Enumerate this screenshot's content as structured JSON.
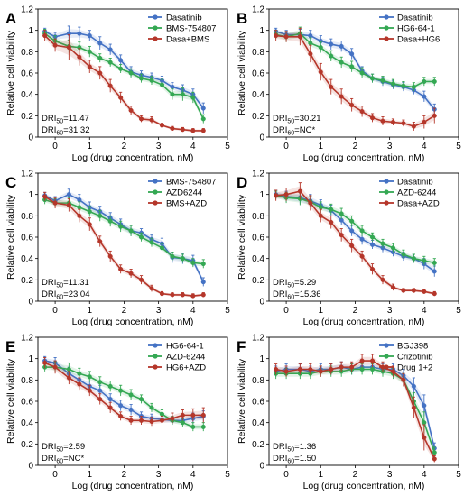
{
  "chart_data": [
    {
      "panel": "A",
      "type": "line",
      "xlabel": "Log (drug concentration, nM)",
      "ylabel": "Relative cell viability",
      "xlim": [
        -0.5,
        5
      ],
      "ylim": [
        0,
        1.2
      ],
      "xticks": [
        "0",
        "1",
        "2",
        "3",
        "4",
        "5"
      ],
      "yticks": [
        "0",
        "0.2",
        "0.4",
        "0.6",
        "0.8",
        "1",
        "1.2"
      ],
      "x": [
        -0.3,
        0.0,
        0.4,
        0.7,
        1.0,
        1.3,
        1.6,
        1.9,
        2.2,
        2.5,
        2.8,
        3.1,
        3.4,
        3.7,
        4.0,
        4.3
      ],
      "series": [
        {
          "name": "Dasatinib",
          "color": "#4472c4",
          "values": [
            0.99,
            0.94,
            0.97,
            0.97,
            0.95,
            0.88,
            0.82,
            0.72,
            0.61,
            0.58,
            0.56,
            0.53,
            0.47,
            0.44,
            0.4,
            0.27
          ],
          "errors": [
            0.03,
            0.04,
            0.07,
            0.06,
            0.05,
            0.06,
            0.05,
            0.05,
            0.05,
            0.04,
            0.04,
            0.04,
            0.04,
            0.05,
            0.05,
            0.05
          ]
        },
        {
          "name": "BMS-754807",
          "color": "#34a853",
          "values": [
            0.97,
            0.9,
            0.85,
            0.84,
            0.8,
            0.74,
            0.7,
            0.64,
            0.6,
            0.55,
            0.53,
            0.49,
            0.4,
            0.4,
            0.37,
            0.17
          ],
          "errors": [
            0.04,
            0.05,
            0.06,
            0.05,
            0.05,
            0.04,
            0.04,
            0.04,
            0.04,
            0.04,
            0.04,
            0.05,
            0.05,
            0.06,
            0.05,
            0.04
          ]
        },
        {
          "name": "Dasa+BMS",
          "color": "#b5362a",
          "values": [
            0.95,
            0.86,
            0.84,
            0.75,
            0.66,
            0.6,
            0.48,
            0.37,
            0.25,
            0.17,
            0.16,
            0.11,
            0.08,
            0.07,
            0.06,
            0.06
          ],
          "errors": [
            0.05,
            0.06,
            0.12,
            0.08,
            0.06,
            0.06,
            0.06,
            0.05,
            0.04,
            0.03,
            0.03,
            0.02,
            0.02,
            0.02,
            0.02,
            0.02
          ]
        }
      ],
      "dri50": "11.47",
      "dri60": "31.32"
    },
    {
      "panel": "B",
      "type": "line",
      "xlabel": "Log (drug concentration, nM)",
      "ylabel": "Relative cell viability",
      "xlim": [
        -0.5,
        5
      ],
      "ylim": [
        0,
        1.2
      ],
      "xticks": [
        "0",
        "1",
        "2",
        "3",
        "4",
        "5"
      ],
      "yticks": [
        "0",
        "0.2",
        "0.4",
        "0.6",
        "0.8",
        "1",
        "1.2"
      ],
      "x": [
        -0.3,
        0.0,
        0.4,
        0.7,
        1.0,
        1.3,
        1.6,
        1.9,
        2.2,
        2.5,
        2.8,
        3.1,
        3.4,
        3.7,
        4.0,
        4.3
      ],
      "series": [
        {
          "name": "Dasatinib",
          "color": "#4472c4",
          "values": [
            0.99,
            0.96,
            0.96,
            0.95,
            0.9,
            0.87,
            0.85,
            0.78,
            0.62,
            0.55,
            0.52,
            0.49,
            0.47,
            0.44,
            0.38,
            0.26
          ],
          "errors": [
            0.03,
            0.04,
            0.05,
            0.05,
            0.05,
            0.05,
            0.05,
            0.05,
            0.04,
            0.04,
            0.04,
            0.04,
            0.04,
            0.04,
            0.05,
            0.05
          ]
        },
        {
          "name": "HG6-64-1",
          "color": "#34a853",
          "values": [
            0.96,
            0.94,
            0.97,
            0.88,
            0.84,
            0.76,
            0.7,
            0.66,
            0.6,
            0.55,
            0.53,
            0.5,
            0.48,
            0.47,
            0.52,
            0.52
          ],
          "errors": [
            0.04,
            0.05,
            0.06,
            0.05,
            0.05,
            0.05,
            0.05,
            0.05,
            0.05,
            0.04,
            0.04,
            0.04,
            0.04,
            0.04,
            0.04,
            0.04
          ]
        },
        {
          "name": "Dasa+HG6",
          "color": "#b5362a",
          "values": [
            0.95,
            0.94,
            0.94,
            0.78,
            0.61,
            0.47,
            0.38,
            0.3,
            0.24,
            0.18,
            0.15,
            0.14,
            0.13,
            0.1,
            0.14,
            0.2
          ],
          "errors": [
            0.05,
            0.05,
            0.08,
            0.08,
            0.08,
            0.07,
            0.07,
            0.06,
            0.05,
            0.04,
            0.04,
            0.03,
            0.03,
            0.04,
            0.06,
            0.07
          ]
        }
      ],
      "dri50": "30.21",
      "dri60": "NC*"
    },
    {
      "panel": "C",
      "type": "line",
      "xlabel": "Log (drug concentration, nM)",
      "ylabel": "Relative cell viability",
      "xlim": [
        -0.5,
        5
      ],
      "ylim": [
        0,
        1.2
      ],
      "xticks": [
        "0",
        "1",
        "2",
        "3",
        "4",
        "5"
      ],
      "yticks": [
        "0",
        "0.2",
        "0.4",
        "0.6",
        "0.8",
        "1",
        "1.2"
      ],
      "x": [
        -0.3,
        0.0,
        0.4,
        0.7,
        1.0,
        1.3,
        1.6,
        1.9,
        2.2,
        2.5,
        2.8,
        3.1,
        3.4,
        3.7,
        4.0,
        4.3
      ],
      "series": [
        {
          "name": "BMS-754807",
          "color": "#4472c4",
          "values": [
            0.99,
            0.94,
            1.0,
            0.95,
            0.88,
            0.84,
            0.78,
            0.72,
            0.66,
            0.64,
            0.58,
            0.54,
            0.41,
            0.4,
            0.38,
            0.18
          ],
          "errors": [
            0.03,
            0.04,
            0.05,
            0.05,
            0.05,
            0.05,
            0.05,
            0.05,
            0.05,
            0.04,
            0.04,
            0.05,
            0.05,
            0.05,
            0.05,
            0.04
          ]
        },
        {
          "name": "AZD6244",
          "color": "#34a853",
          "values": [
            0.95,
            0.92,
            0.92,
            0.88,
            0.84,
            0.8,
            0.75,
            0.7,
            0.66,
            0.6,
            0.55,
            0.5,
            0.42,
            0.4,
            0.36,
            0.35
          ],
          "errors": [
            0.04,
            0.04,
            0.05,
            0.05,
            0.05,
            0.05,
            0.05,
            0.05,
            0.05,
            0.04,
            0.04,
            0.04,
            0.04,
            0.04,
            0.04,
            0.04
          ]
        },
        {
          "name": "BMS+AZD",
          "color": "#b5362a",
          "values": [
            0.98,
            0.92,
            0.9,
            0.8,
            0.72,
            0.56,
            0.42,
            0.3,
            0.26,
            0.2,
            0.12,
            0.07,
            0.06,
            0.06,
            0.05,
            0.06
          ],
          "errors": [
            0.04,
            0.05,
            0.06,
            0.06,
            0.06,
            0.05,
            0.05,
            0.04,
            0.04,
            0.04,
            0.03,
            0.02,
            0.02,
            0.02,
            0.02,
            0.02
          ]
        }
      ],
      "dri50": "11.31",
      "dri60": "23.04"
    },
    {
      "panel": "D",
      "type": "line",
      "xlabel": "Log (drug concentration, nM)",
      "ylabel": "Relative cell viability",
      "xlim": [
        -0.5,
        5
      ],
      "ylim": [
        0,
        1.2
      ],
      "xticks": [
        "0",
        "1",
        "2",
        "3",
        "4",
        "5"
      ],
      "yticks": [
        "0",
        "0.2",
        "0.4",
        "0.6",
        "0.8",
        "1",
        "1.2"
      ],
      "x": [
        -0.3,
        0.0,
        0.4,
        0.7,
        1.0,
        1.3,
        1.6,
        1.9,
        2.2,
        2.5,
        2.8,
        3.1,
        3.4,
        3.7,
        4.0,
        4.3
      ],
      "series": [
        {
          "name": "Dasatinib",
          "color": "#4472c4",
          "values": [
            1.0,
            0.98,
            0.97,
            0.94,
            0.9,
            0.85,
            0.76,
            0.66,
            0.58,
            0.53,
            0.5,
            0.46,
            0.42,
            0.4,
            0.35,
            0.28
          ],
          "errors": [
            0.04,
            0.05,
            0.06,
            0.06,
            0.05,
            0.05,
            0.05,
            0.05,
            0.05,
            0.04,
            0.04,
            0.04,
            0.04,
            0.04,
            0.05,
            0.05
          ]
        },
        {
          "name": "AZD-6244",
          "color": "#34a853",
          "values": [
            0.99,
            0.97,
            0.96,
            0.93,
            0.88,
            0.86,
            0.82,
            0.75,
            0.66,
            0.6,
            0.54,
            0.5,
            0.44,
            0.4,
            0.38,
            0.36
          ],
          "errors": [
            0.04,
            0.05,
            0.06,
            0.05,
            0.05,
            0.05,
            0.05,
            0.05,
            0.05,
            0.04,
            0.04,
            0.04,
            0.04,
            0.04,
            0.04,
            0.04
          ]
        },
        {
          "name": "Dasa+AZD",
          "color": "#b5362a",
          "values": [
            0.99,
            1.0,
            1.03,
            0.92,
            0.8,
            0.74,
            0.62,
            0.52,
            0.42,
            0.3,
            0.2,
            0.13,
            0.1,
            0.1,
            0.09,
            0.07
          ],
          "errors": [
            0.05,
            0.06,
            0.08,
            0.07,
            0.06,
            0.06,
            0.06,
            0.06,
            0.05,
            0.05,
            0.04,
            0.03,
            0.02,
            0.02,
            0.02,
            0.02
          ]
        }
      ],
      "dri50": "5.29",
      "dri60": "15.36"
    },
    {
      "panel": "E",
      "type": "line",
      "xlabel": "Log (drug concentration, nM)",
      "ylabel": "Relative cell viability",
      "xlim": [
        -0.5,
        5
      ],
      "ylim": [
        0,
        1.2
      ],
      "xticks": [
        "0",
        "1",
        "2",
        "3",
        "4",
        "5"
      ],
      "yticks": [
        "0",
        "0.2",
        "0.4",
        "0.6",
        "0.8",
        "1",
        "1.2"
      ],
      "x": [
        -0.3,
        0.0,
        0.4,
        0.7,
        1.0,
        1.3,
        1.6,
        1.9,
        2.2,
        2.5,
        2.8,
        3.1,
        3.4,
        3.7,
        4.0,
        4.3
      ],
      "series": [
        {
          "name": "HG6-64-1",
          "color": "#4472c4",
          "values": [
            0.98,
            0.96,
            0.86,
            0.8,
            0.74,
            0.7,
            0.62,
            0.56,
            0.52,
            0.46,
            0.44,
            0.43,
            0.42,
            0.42,
            0.44,
            0.46
          ],
          "errors": [
            0.04,
            0.05,
            0.06,
            0.05,
            0.05,
            0.05,
            0.05,
            0.05,
            0.05,
            0.04,
            0.04,
            0.04,
            0.04,
            0.04,
            0.05,
            0.05
          ]
        },
        {
          "name": "AZD-6244",
          "color": "#34a853",
          "values": [
            0.92,
            0.92,
            0.9,
            0.86,
            0.83,
            0.78,
            0.74,
            0.7,
            0.66,
            0.62,
            0.54,
            0.48,
            0.42,
            0.4,
            0.36,
            0.36
          ],
          "errors": [
            0.04,
            0.05,
            0.06,
            0.05,
            0.05,
            0.05,
            0.05,
            0.05,
            0.05,
            0.04,
            0.04,
            0.04,
            0.04,
            0.04,
            0.04,
            0.04
          ]
        },
        {
          "name": "HG6+AZD",
          "color": "#b5362a",
          "values": [
            0.96,
            0.92,
            0.82,
            0.76,
            0.7,
            0.62,
            0.54,
            0.46,
            0.42,
            0.42,
            0.41,
            0.42,
            0.44,
            0.47,
            0.47,
            0.47
          ],
          "errors": [
            0.05,
            0.06,
            0.06,
            0.06,
            0.05,
            0.05,
            0.05,
            0.04,
            0.04,
            0.04,
            0.04,
            0.04,
            0.05,
            0.05,
            0.06,
            0.07
          ]
        }
      ],
      "dri50": "2.59",
      "dri60": "NC*"
    },
    {
      "panel": "F",
      "type": "line",
      "xlabel": "Log (drug concentration, nM)",
      "ylabel": "Relative cell viability",
      "xlim": [
        -0.5,
        5
      ],
      "ylim": [
        0,
        1.2
      ],
      "xticks": [
        "0",
        "1",
        "2",
        "3",
        "4",
        "5"
      ],
      "yticks": [
        "0",
        "0.2",
        "0.4",
        "0.6",
        "0.8",
        "1",
        "1.2"
      ],
      "x": [
        -0.3,
        0.0,
        0.4,
        0.7,
        1.0,
        1.3,
        1.6,
        1.9,
        2.2,
        2.5,
        2.8,
        3.1,
        3.4,
        3.7,
        4.0,
        4.3
      ],
      "series": [
        {
          "name": "BGJ398",
          "color": "#4472c4",
          "values": [
            0.88,
            0.9,
            0.9,
            0.88,
            0.9,
            0.9,
            0.92,
            0.9,
            0.92,
            0.92,
            0.9,
            0.9,
            0.84,
            0.74,
            0.56,
            0.16
          ],
          "errors": [
            0.05,
            0.05,
            0.05,
            0.05,
            0.05,
            0.05,
            0.05,
            0.05,
            0.05,
            0.05,
            0.05,
            0.05,
            0.06,
            0.08,
            0.1,
            0.05
          ]
        },
        {
          "name": "Crizotinib",
          "color": "#34a853",
          "values": [
            0.86,
            0.86,
            0.86,
            0.86,
            0.88,
            0.88,
            0.88,
            0.9,
            0.9,
            0.9,
            0.88,
            0.86,
            0.8,
            0.6,
            0.4,
            0.12
          ],
          "errors": [
            0.05,
            0.05,
            0.05,
            0.05,
            0.05,
            0.05,
            0.05,
            0.05,
            0.05,
            0.05,
            0.05,
            0.05,
            0.06,
            0.08,
            0.1,
            0.05
          ]
        },
        {
          "name": "Drug 1+2",
          "color": "#b5362a",
          "values": [
            0.9,
            0.88,
            0.9,
            0.9,
            0.88,
            0.9,
            0.92,
            0.92,
            0.98,
            0.98,
            0.92,
            0.88,
            0.8,
            0.54,
            0.26,
            0.06
          ],
          "errors": [
            0.05,
            0.05,
            0.05,
            0.05,
            0.05,
            0.05,
            0.05,
            0.05,
            0.06,
            0.06,
            0.05,
            0.05,
            0.06,
            0.1,
            0.12,
            0.03
          ]
        }
      ],
      "dri50": "1.36",
      "dri60": "1.50"
    }
  ]
}
